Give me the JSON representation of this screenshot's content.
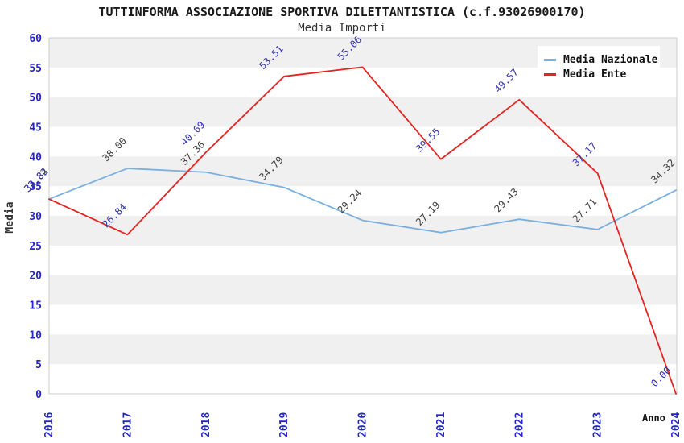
{
  "chart_data": {
    "type": "line",
    "title": "TUTTINFORMA ASSOCIAZIONE SPORTIVA DILETTANTISTICA (c.f.93026900170)",
    "subtitle": "Media Importi",
    "xlabel": "Anno",
    "ylabel": "Media",
    "categories": [
      "2016",
      "2017",
      "2018",
      "2019",
      "2020",
      "2021",
      "2022",
      "2023",
      "2024"
    ],
    "series": [
      {
        "name": "Media Nazionale",
        "color": "#79afe1",
        "label_color": "#3d3d3d",
        "values": [
          32.84,
          38.0,
          37.36,
          34.79,
          29.24,
          27.19,
          29.43,
          27.71,
          34.32
        ]
      },
      {
        "name": "Media Ente",
        "color": "#e32421",
        "label_color": "#3434b0",
        "values": [
          32.82,
          26.84,
          40.69,
          53.51,
          55.06,
          39.55,
          49.57,
          37.17,
          0.0
        ]
      }
    ],
    "ylim": [
      0,
      60
    ],
    "ytick_step": 5,
    "yticks": [
      0,
      5,
      10,
      15,
      20,
      25,
      30,
      35,
      40,
      45,
      50,
      55,
      60
    ],
    "grid": "horizontal-bands-alternating",
    "legend_position": "top-right",
    "value_labels": "each-point-2-decimals-rotated-45",
    "tick_color": "#2525cf",
    "band_color": "#f0f0f0",
    "border_color": "#cccccc",
    "background_color": "#ffffff"
  }
}
